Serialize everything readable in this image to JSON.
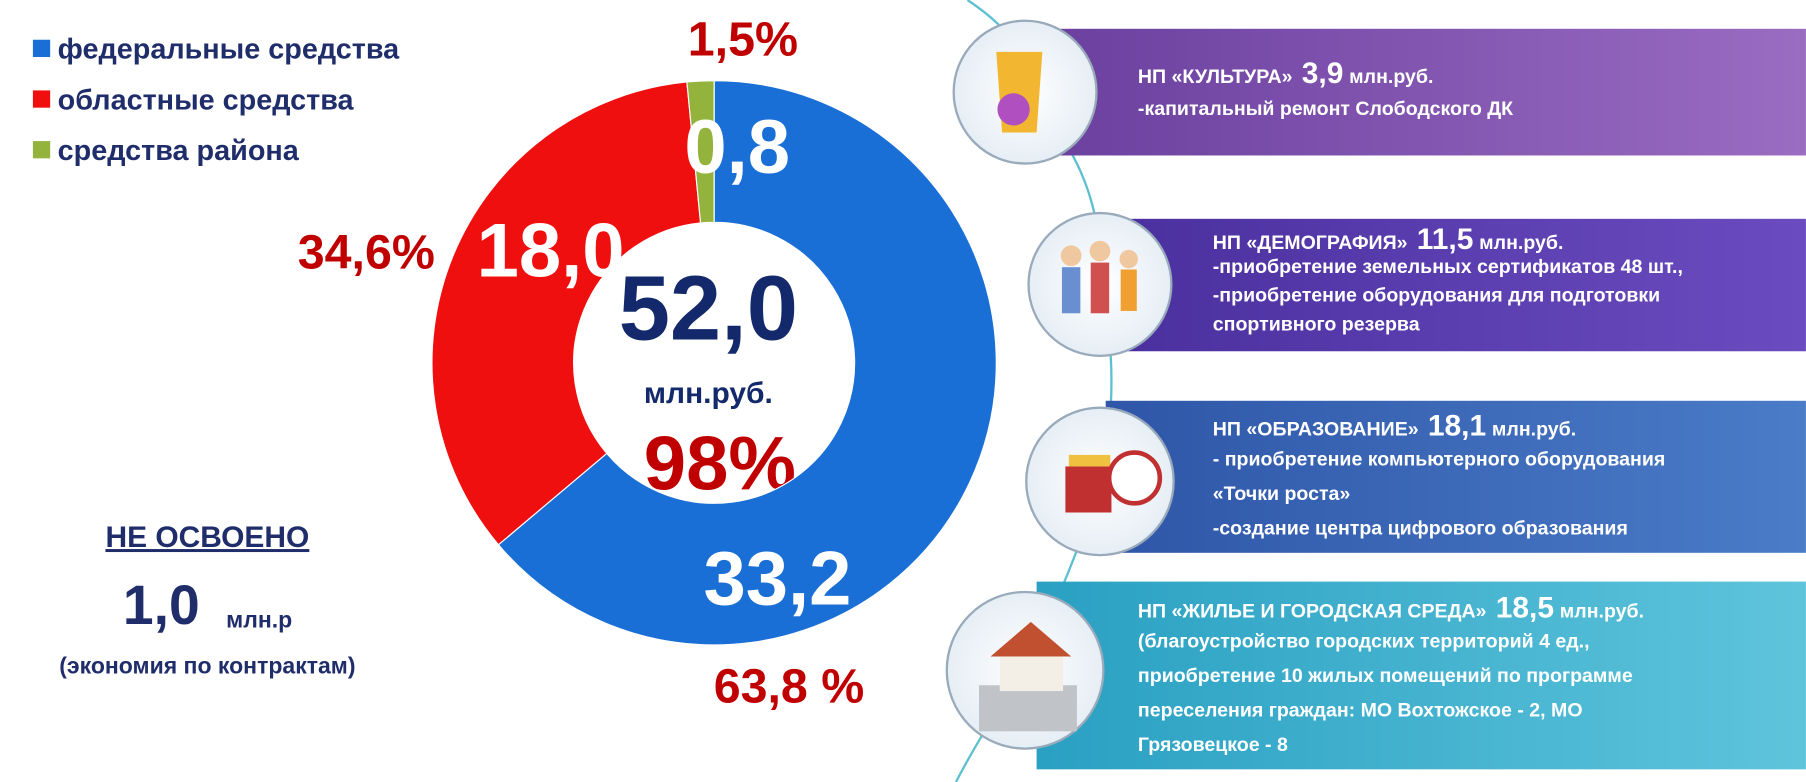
{
  "chart_data": {
    "type": "donut",
    "categories": [
      "федеральные средства",
      "областные средства",
      "средства района"
    ],
    "values": [
      33.2,
      18.0,
      0.8
    ],
    "value_labels": [
      "33,2",
      "18,0",
      "0,8"
    ],
    "shares": [
      63.8,
      34.6,
      1.5
    ],
    "share_labels": [
      "63,8 %",
      "34,6%",
      "1,5%"
    ],
    "colors": [
      "#1a6fd6",
      "#f00f0f",
      "#94b33c"
    ],
    "center_total": {
      "value": 52.0,
      "label": "52,0"
    },
    "center_unit": "млн.руб.",
    "center_share": {
      "value": 98,
      "label": "98%"
    }
  },
  "unspent": {
    "title": "НЕ ОСВОЕНО",
    "value": "1,0",
    "unit": "млн.р",
    "note": "(экономия по контрактам)"
  },
  "projects": [
    {
      "name": "НП «КУЛЬТУРА»",
      "amount": "3,9",
      "unit": "млн.руб.",
      "lines": [
        "-капитальный ремонт Слободского ДК"
      ]
    },
    {
      "name": "НП «ДЕМОГРАФИЯ»",
      "amount": "11,5",
      "unit": "млн.руб.",
      "lines": [
        "-приобретение земельных сертификатов 48 шт.,",
        "-приобретение оборудования для подготовки",
        "спортивного резерва"
      ]
    },
    {
      "name": "НП «ОБРАЗОВАНИЕ»",
      "amount": "18,1",
      "unit": "млн.руб.",
      "lines": [
        "- приобретение компьютерного оборудования",
        "«Точки роста»",
        "-создание центра цифрового образования"
      ]
    },
    {
      "name": "НП «ЖИЛЬЕ И ГОРОДСКАЯ СРЕДА»",
      "amount": "18,5",
      "unit": "млн.руб.",
      "lines": [
        "(благоустройство городских территорий 4 ед.,",
        "приобретение 10 жилых помещений по программе",
        "переселения граждан: МО Вохтожское - 2, МО",
        "Грязовецкое - 8"
      ]
    }
  ]
}
